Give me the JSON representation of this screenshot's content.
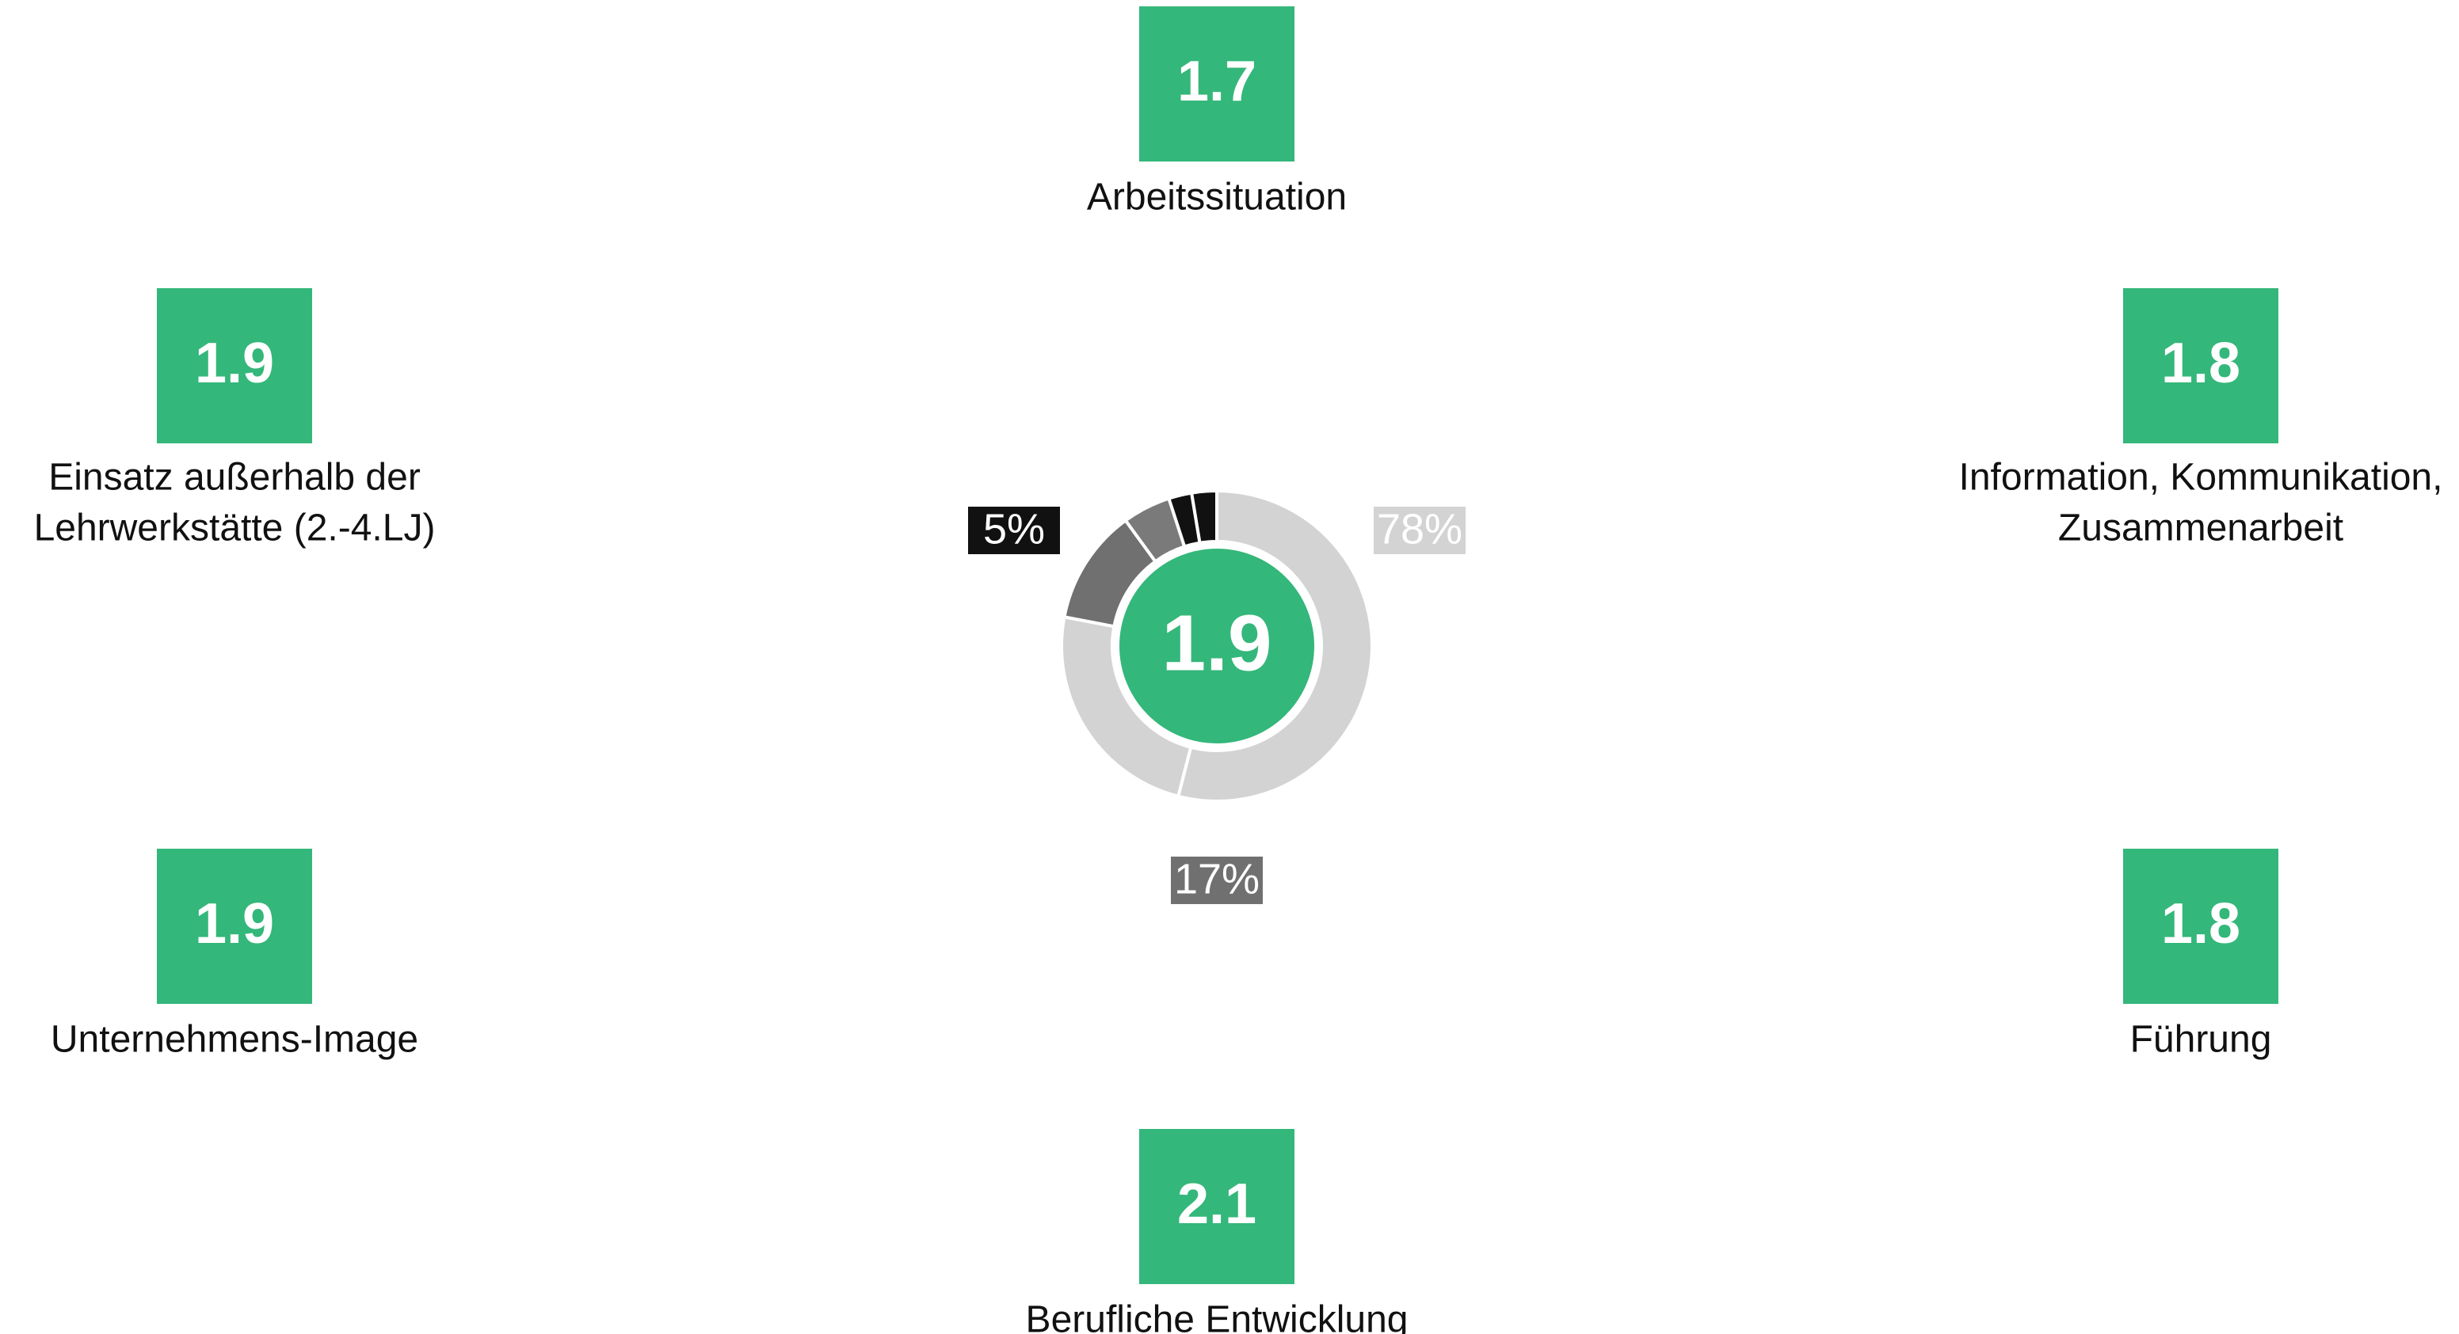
{
  "tiles": [
    {
      "value": 1.7,
      "label_lines": [
        "Arbeitssituation"
      ]
    },
    {
      "value": 1.9,
      "label_lines": [
        "Einsatz außerhalb der",
        "Lehrwerkstätte (2.-4.LJ)"
      ]
    },
    {
      "value": 1.8,
      "label_lines": [
        "Information, Kommunikation,",
        "Zusammenarbeit"
      ]
    },
    {
      "value": 1.9,
      "label_lines": [
        "Unternehmens-Image"
      ]
    },
    {
      "value": 1.8,
      "label_lines": [
        "Führung"
      ]
    },
    {
      "value": 2.1,
      "label_lines": [
        "Berufliche Entwicklung"
      ]
    }
  ],
  "chart_data": {
    "type": "donut",
    "values": [
      54,
      24,
      12,
      5,
      2.4,
      2.6
    ],
    "colors": [
      "#d3d3d3",
      "#d3d3d3",
      "#707070",
      "#7a7a7a",
      "#111111",
      "#111111"
    ],
    "center_value": 1.9,
    "center_color": "#34b77a",
    "group_values": [
      78,
      17,
      5
    ],
    "group_value_labels": [
      "78%",
      "17%",
      "5%"
    ],
    "group_colors": [
      "#d3d3d3",
      "#707070",
      "#111111"
    ]
  }
}
